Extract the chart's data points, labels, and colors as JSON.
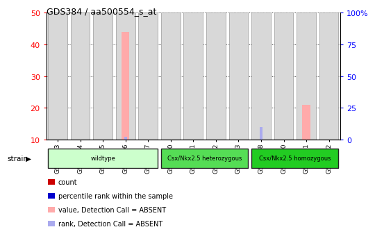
{
  "title": "GDS384 / aa500554_s_at",
  "samples": [
    "GSM7773",
    "GSM7774",
    "GSM7775",
    "GSM7776",
    "GSM7777",
    "GSM7760",
    "GSM7761",
    "GSM7762",
    "GSM7763",
    "GSM7768",
    "GSM7770",
    "GSM7771",
    "GSM7772"
  ],
  "pink_values": [
    0,
    0,
    0,
    44,
    0,
    0,
    0,
    0,
    0,
    0,
    0,
    21,
    0
  ],
  "blue_rank_values": [
    0,
    0,
    0,
    11,
    0,
    0,
    0,
    0,
    0,
    14,
    0,
    10,
    0
  ],
  "ylim_left": [
    10,
    50
  ],
  "ylim_right": [
    0,
    100
  ],
  "yticks_left": [
    10,
    20,
    30,
    40,
    50
  ],
  "yticks_right": [
    0,
    25,
    50,
    75,
    100
  ],
  "ytick_labels_right": [
    "0",
    "25",
    "50",
    "75",
    "100%"
  ],
  "groups": [
    {
      "label": "wildtype",
      "start": 0,
      "end": 4,
      "color": "#ccffcc"
    },
    {
      "label": "Csx/Nkx2.5 heterozygous",
      "start": 5,
      "end": 8,
      "color": "#55dd55"
    },
    {
      "label": "Csx/Nkx2.5 homozygous",
      "start": 9,
      "end": 12,
      "color": "#22cc22"
    }
  ],
  "pink_color": "#ffaaaa",
  "blue_color": "#aaaaee",
  "bar_bg_color": "#d8d8d8",
  "bar_border_color": "#999999",
  "plot_bg_color": "#ffffff",
  "legend_items": [
    {
      "color": "#cc0000",
      "label": "count"
    },
    {
      "color": "#0000cc",
      "label": "percentile rank within the sample"
    },
    {
      "color": "#ffaaaa",
      "label": "value, Detection Call = ABSENT"
    },
    {
      "color": "#aaaaee",
      "label": "rank, Detection Call = ABSENT"
    }
  ]
}
